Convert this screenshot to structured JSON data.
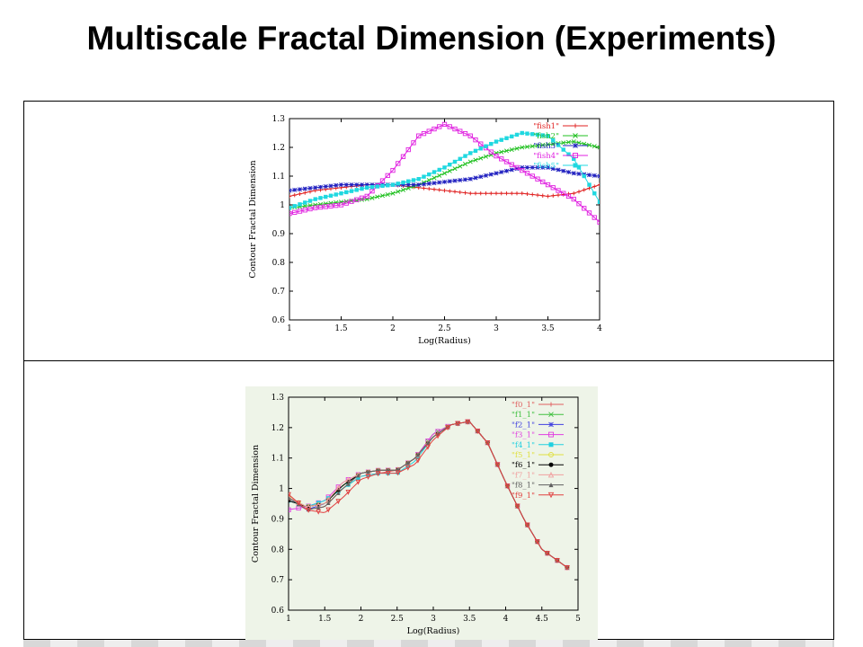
{
  "slide": {
    "title": "Multiscale Fractal Dimension (Experiments)"
  },
  "chart_data": [
    {
      "type": "line",
      "xlabel": "Log(Radius)",
      "ylabel": "Contour Fractal Dimension",
      "xlim": [
        1,
        4
      ],
      "ylim": [
        0.6,
        1.3
      ],
      "xticks": [
        "1",
        "1.5",
        "2",
        "2.5",
        "3",
        "3.5",
        "4"
      ],
      "yticks": [
        "0.6",
        "0.7",
        "0.8",
        "0.9",
        "1",
        "1.1",
        "1.2",
        "1.3"
      ],
      "legend_position": "top-right",
      "background": "#ffffff",
      "series": [
        {
          "name": "\"fish1\"",
          "color": "#e02020",
          "marker": "plus",
          "x": [
            1,
            1.25,
            1.5,
            1.75,
            2,
            2.25,
            2.5,
            2.75,
            3,
            3.25,
            3.5,
            3.75,
            4
          ],
          "y": [
            1.03,
            1.05,
            1.06,
            1.07,
            1.07,
            1.06,
            1.05,
            1.04,
            1.04,
            1.04,
            1.03,
            1.04,
            1.07
          ]
        },
        {
          "name": "\"fish2\"",
          "color": "#20c020",
          "marker": "x",
          "x": [
            1,
            1.25,
            1.5,
            1.75,
            2,
            2.25,
            2.5,
            2.75,
            3,
            3.25,
            3.5,
            3.75,
            4
          ],
          "y": [
            0.99,
            1.0,
            1.01,
            1.02,
            1.04,
            1.07,
            1.11,
            1.15,
            1.18,
            1.2,
            1.21,
            1.22,
            1.2
          ]
        },
        {
          "name": "\"fish3\"",
          "color": "#2020c0",
          "marker": "star",
          "x": [
            1,
            1.25,
            1.5,
            1.75,
            2,
            2.25,
            2.5,
            2.75,
            3,
            3.25,
            3.5,
            3.75,
            4
          ],
          "y": [
            1.05,
            1.06,
            1.07,
            1.07,
            1.07,
            1.07,
            1.08,
            1.09,
            1.11,
            1.13,
            1.13,
            1.11,
            1.1
          ]
        },
        {
          "name": "\"fish4\"",
          "color": "#e020e0",
          "marker": "square",
          "x": [
            1,
            1.25,
            1.5,
            1.75,
            2,
            2.25,
            2.5,
            2.75,
            3,
            3.25,
            3.5,
            3.75,
            4
          ],
          "y": [
            0.97,
            0.99,
            1.0,
            1.03,
            1.12,
            1.24,
            1.28,
            1.24,
            1.17,
            1.12,
            1.07,
            1.02,
            0.94
          ]
        },
        {
          "name": "\"fish5\"",
          "color": "#20d8e0",
          "marker": "filled-square",
          "x": [
            1,
            1.25,
            1.5,
            1.75,
            2,
            2.25,
            2.5,
            2.75,
            3,
            3.25,
            3.5,
            3.75,
            4
          ],
          "y": [
            0.99,
            1.02,
            1.04,
            1.06,
            1.07,
            1.09,
            1.13,
            1.18,
            1.22,
            1.25,
            1.24,
            1.16,
            1.01
          ]
        }
      ]
    },
    {
      "type": "line",
      "xlabel": "Log(Radius)",
      "ylabel": "Contour Fractal Dimension",
      "xlim": [
        1,
        5
      ],
      "ylim": [
        0.6,
        1.3
      ],
      "xticks": [
        "1",
        "1.5",
        "2",
        "2.5",
        "3",
        "3.5",
        "4",
        "4.5",
        "5"
      ],
      "yticks": [
        "0.6",
        "0.7",
        "0.8",
        "0.9",
        "1",
        "1.1",
        "1.2",
        "1.3"
      ],
      "legend_position": "top-right",
      "background": "#eef4e8",
      "x": [
        1,
        1.25,
        1.5,
        1.75,
        2,
        2.25,
        2.5,
        2.75,
        3,
        3.25,
        3.5,
        3.75,
        4,
        4.25,
        4.5,
        4.85
      ],
      "series": [
        {
          "name": "\"f0_1\"",
          "color": "#e06060",
          "marker": "plus",
          "y": [
            0.98,
            0.93,
            0.94,
            1.0,
            1.04,
            1.05,
            1.06,
            1.1,
            1.17,
            1.21,
            1.22,
            1.15,
            1.02,
            0.9,
            0.8,
            0.74
          ]
        },
        {
          "name": "\"f1_1\"",
          "color": "#40c040",
          "marker": "x",
          "y": [
            0.97,
            0.94,
            0.95,
            1.01,
            1.05,
            1.06,
            1.06,
            1.1,
            1.18,
            1.21,
            1.22,
            1.15,
            1.02,
            0.9,
            0.8,
            0.74
          ]
        },
        {
          "name": "\"f2_1\"",
          "color": "#4040e0",
          "marker": "star",
          "y": [
            0.97,
            0.93,
            0.95,
            1.01,
            1.05,
            1.06,
            1.06,
            1.1,
            1.17,
            1.21,
            1.22,
            1.15,
            1.02,
            0.9,
            0.8,
            0.74
          ]
        },
        {
          "name": "\"f3_1\"",
          "color": "#e040e0",
          "marker": "square",
          "y": [
            0.93,
            0.94,
            0.96,
            1.02,
            1.05,
            1.06,
            1.06,
            1.1,
            1.18,
            1.21,
            1.22,
            1.15,
            1.02,
            0.9,
            0.8,
            0.74
          ]
        },
        {
          "name": "\"f4_1\"",
          "color": "#20d0e0",
          "marker": "filled-square",
          "y": [
            0.96,
            0.94,
            0.96,
            1.0,
            1.04,
            1.05,
            1.05,
            1.09,
            1.17,
            1.21,
            1.22,
            1.15,
            1.02,
            0.9,
            0.8,
            0.74
          ]
        },
        {
          "name": "\"f5_1\"",
          "color": "#e0e040",
          "marker": "circle",
          "y": [
            0.97,
            0.94,
            0.95,
            1.01,
            1.05,
            1.06,
            1.06,
            1.1,
            1.17,
            1.21,
            1.22,
            1.15,
            1.02,
            0.9,
            0.8,
            0.74
          ]
        },
        {
          "name": "\"f6_1\"",
          "color": "#000000",
          "marker": "filled-circle",
          "y": [
            0.96,
            0.94,
            0.95,
            1.01,
            1.05,
            1.06,
            1.06,
            1.1,
            1.17,
            1.21,
            1.22,
            1.15,
            1.02,
            0.9,
            0.8,
            0.74
          ]
        },
        {
          "name": "\"f7_1\"",
          "color": "#f0a0a0",
          "marker": "triangle",
          "y": [
            0.97,
            0.94,
            0.95,
            1.02,
            1.05,
            1.06,
            1.06,
            1.1,
            1.17,
            1.21,
            1.22,
            1.15,
            1.02,
            0.9,
            0.8,
            0.74
          ]
        },
        {
          "name": "\"f8_1\"",
          "color": "#606060",
          "marker": "filled-triangle",
          "y": [
            0.97,
            0.93,
            0.94,
            1.0,
            1.05,
            1.06,
            1.06,
            1.1,
            1.17,
            1.21,
            1.22,
            1.15,
            1.02,
            0.9,
            0.8,
            0.74
          ]
        },
        {
          "name": "\"f9_1\"",
          "color": "#e04040",
          "marker": "inv-triangle",
          "y": [
            0.98,
            0.93,
            0.92,
            0.97,
            1.03,
            1.05,
            1.05,
            1.08,
            1.16,
            1.21,
            1.22,
            1.15,
            1.02,
            0.9,
            0.8,
            0.74
          ]
        }
      ]
    }
  ]
}
